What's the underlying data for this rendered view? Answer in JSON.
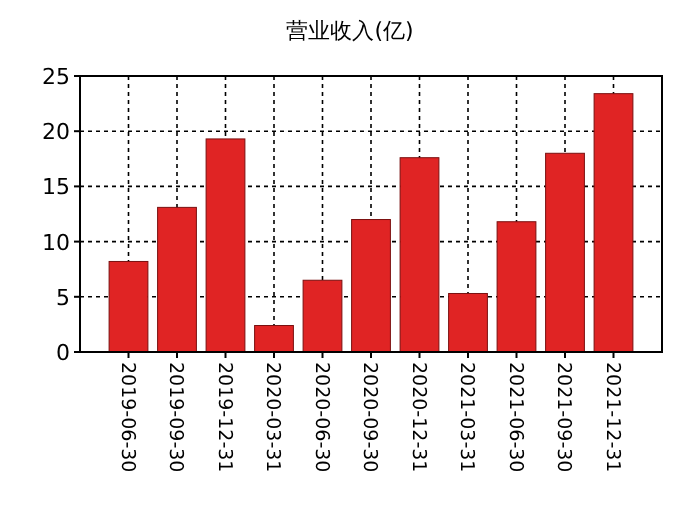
{
  "chart_data": {
    "type": "bar",
    "title": "营业收入(亿)",
    "categories": [
      "2019-06-30",
      "2019-09-30",
      "2019-12-31",
      "2020-03-31",
      "2020-06-30",
      "2020-09-30",
      "2020-12-31",
      "2021-03-31",
      "2021-06-30",
      "2021-09-30",
      "2021-12-31"
    ],
    "values": [
      8.2,
      13.1,
      19.3,
      2.4,
      6.5,
      12.0,
      17.6,
      5.3,
      11.8,
      18.0,
      23.4
    ],
    "color": "#e02424",
    "ylim": [
      0,
      25
    ],
    "yticks": [
      0,
      5,
      10,
      15,
      20,
      25
    ],
    "grid": true
  }
}
